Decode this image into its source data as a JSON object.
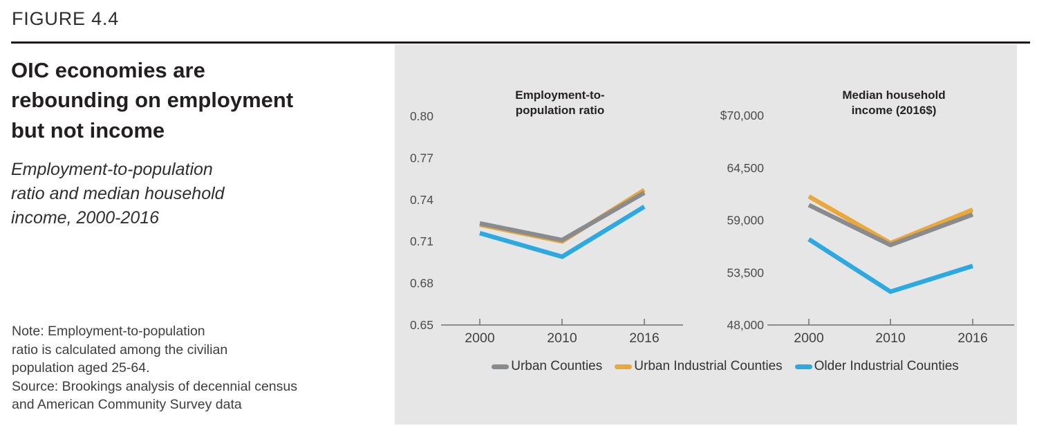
{
  "figure_label": "FIGURE 4.4",
  "title": "OIC economies are\nrebounding on employment\nbut not income",
  "subtitle": "Employment-to-population\nratio and median household\nincome, 2000-2016",
  "note": "Note: Employment-to-population\nratio is calculated among the civilian\npopulation aged 25-64.\nSource: Brookings analysis of decennial census\nand American Community Survey data",
  "colors": {
    "gray": "#898B8E",
    "yellow": "#EAA83B",
    "blue": "#2CA9E1",
    "panel_background": "#E6E6E6",
    "rule_black": "#1E1A1B"
  },
  "legend": {
    "items": [
      {
        "label": "Urban Counties",
        "color_key": "gray"
      },
      {
        "label": "Urban Industrial Counties",
        "color_key": "yellow"
      },
      {
        "label": "Older Industrial Counties",
        "color_key": "blue"
      }
    ]
  },
  "chart_data": [
    {
      "type": "line",
      "title": "Employment-to-\npopulation ratio",
      "x": [
        2000,
        2010,
        2016
      ],
      "x_tick_labels": [
        "2000",
        "2010",
        "2016"
      ],
      "y_tick_labels": [
        "0.80",
        "0.77",
        "0.74",
        "0.71",
        "0.68",
        "0.65"
      ],
      "ylim": [
        0.65,
        0.8
      ],
      "grid": false,
      "series": [
        {
          "name": "Urban Industrial Counties",
          "color_key": "yellow",
          "values": [
            0.722,
            0.71,
            0.747
          ]
        },
        {
          "name": "Urban Counties",
          "color_key": "gray",
          "values": [
            0.723,
            0.711,
            0.745
          ]
        },
        {
          "name": "Older Industrial Counties",
          "color_key": "blue",
          "values": [
            0.716,
            0.699,
            0.735
          ]
        }
      ]
    },
    {
      "type": "line",
      "title": "Median household\nincome (2016$)",
      "x": [
        2000,
        2010,
        2016
      ],
      "x_tick_labels": [
        "2000",
        "2010",
        "2016"
      ],
      "y_tick_labels": [
        "$70,000",
        "64,500",
        "59,000",
        "53,500",
        "48,000"
      ],
      "ylim": [
        48000,
        70000
      ],
      "grid": false,
      "series": [
        {
          "name": "Urban Industrial Counties",
          "color_key": "yellow",
          "values": [
            61500,
            56600,
            60100
          ]
        },
        {
          "name": "Urban Counties",
          "color_key": "gray",
          "values": [
            60600,
            56400,
            59600
          ]
        },
        {
          "name": "Older Industrial Counties",
          "color_key": "blue",
          "values": [
            57000,
            51500,
            54200
          ]
        }
      ]
    }
  ]
}
